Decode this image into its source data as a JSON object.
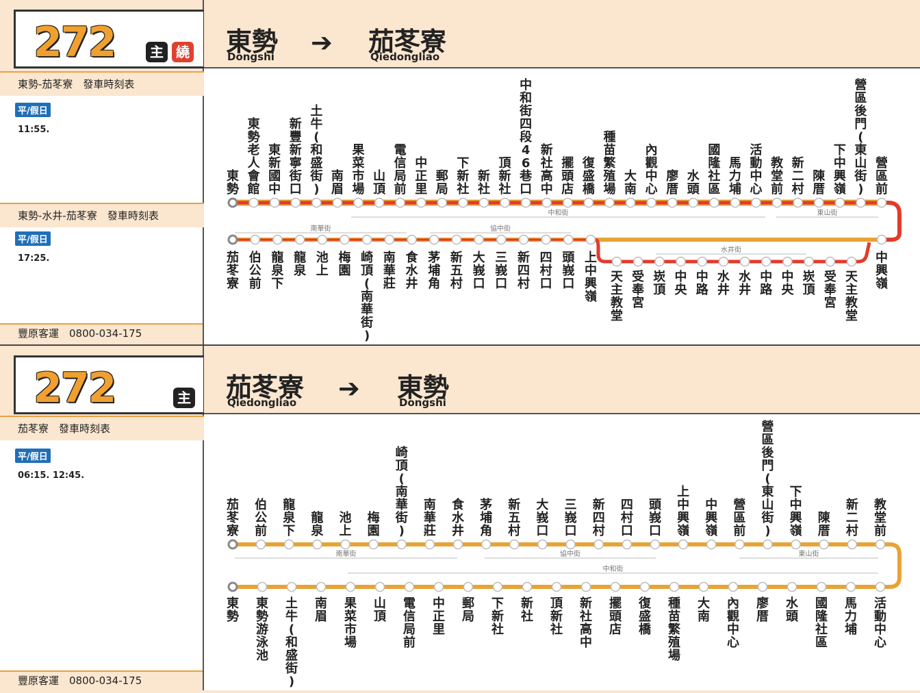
{
  "panels": [
    {
      "route_no": "272",
      "badges": [
        "主",
        "繞"
      ],
      "from": {
        "name": "東勢",
        "roman": "Dongshi"
      },
      "to": {
        "name": "茄苳寮",
        "roman": "Qiedongliao"
      },
      "sections": [
        {
          "title": "東勢-茄苳寮　發車時刻表",
          "day": "平/假日",
          "times": "11:55."
        },
        {
          "title": "東勢-水井-茄苳寮　發車時刻表",
          "day": "平/假日",
          "times": "17:25."
        }
      ],
      "footer": "豐原客運　0800-034-175",
      "top_stops": [
        "東勢",
        "東勢老人會館",
        "東新國中",
        "新豐新寧街口",
        "土牛(和盛街)",
        "南眉",
        "果菜市場",
        "山頂",
        "電信局前",
        "中正里",
        "郵局",
        "下新社",
        "新社",
        "頂新社",
        "中和街四段46巷口",
        "新社高中",
        "擺頭店",
        "復盛橋",
        "種苗繁殖場",
        "大南",
        "內觀中心",
        "廖厝",
        "水頭",
        "國隆社區",
        "馬力埔",
        "活動中心",
        "教堂前",
        "新二村",
        "陳厝",
        "下中興嶺",
        "營區後門(東山街)",
        "營區前"
      ],
      "bottom_stops": [
        "茄苳寮",
        "伯公前",
        "龍泉下",
        "龍泉",
        "池上",
        "梅園",
        "崎頂(南華街)",
        "南華莊",
        "食水井",
        "茅埔角",
        "新五村",
        "大峩口",
        "三峩口",
        "新四村",
        "四村口",
        "頭峩口",
        "上中興嶺"
      ],
      "loop_stops": [
        "天主教堂",
        "受奉宮",
        "崁頂",
        "中央",
        "中路",
        "水井",
        "水井",
        "中路",
        "中央",
        "崁頂",
        "受奉宮",
        "天主教堂"
      ],
      "right_stop": "中興嶺",
      "street_labels": [
        "中和街",
        "東山街",
        "南華街",
        "協中街",
        "水井街"
      ]
    },
    {
      "route_no": "272",
      "badges": [
        "主"
      ],
      "from": {
        "name": "茄苳寮",
        "roman": "Qiedongliao"
      },
      "to": {
        "name": "東勢",
        "roman": "Dongshi"
      },
      "sections": [
        {
          "title": "茄苳寮　發車時刻表",
          "day": "平/假日",
          "times": "06:15. 12:45."
        }
      ],
      "footer": "豐原客運　0800-034-175",
      "top_stops": [
        "茄苳寮",
        "伯公前",
        "龍泉下",
        "龍泉",
        "池上",
        "梅園",
        "崎頂(南華街)",
        "南華莊",
        "食水井",
        "茅埔角",
        "新五村",
        "大峩口",
        "三峩口",
        "新四村",
        "四村口",
        "頭峩口",
        "上中興嶺",
        "中興嶺",
        "營區前",
        "營區後門(東山街)",
        "下中興嶺",
        "陳厝",
        "新二村",
        "教堂前"
      ],
      "bottom_stops": [
        "東勢",
        "東勢游泳池",
        "土牛(和盛街)",
        "南眉",
        "果菜市場",
        "山頂",
        "電信局前",
        "中正里",
        "郵局",
        "下新社",
        "新社",
        "頂新社",
        "新社高中",
        "擺頭店",
        "復盛橋",
        "種苗繁殖場",
        "大南",
        "內觀中心",
        "廖厝",
        "水頭",
        "國隆社區",
        "馬力埔",
        "活動中心"
      ],
      "street_labels": [
        "南華街",
        "協中街",
        "東山街",
        "中和街"
      ]
    }
  ],
  "colors": {
    "line_red": "#e23b2a",
    "line_orange": "#e8a336",
    "accent": "#f0a030",
    "blue": "#1f6fb8"
  }
}
